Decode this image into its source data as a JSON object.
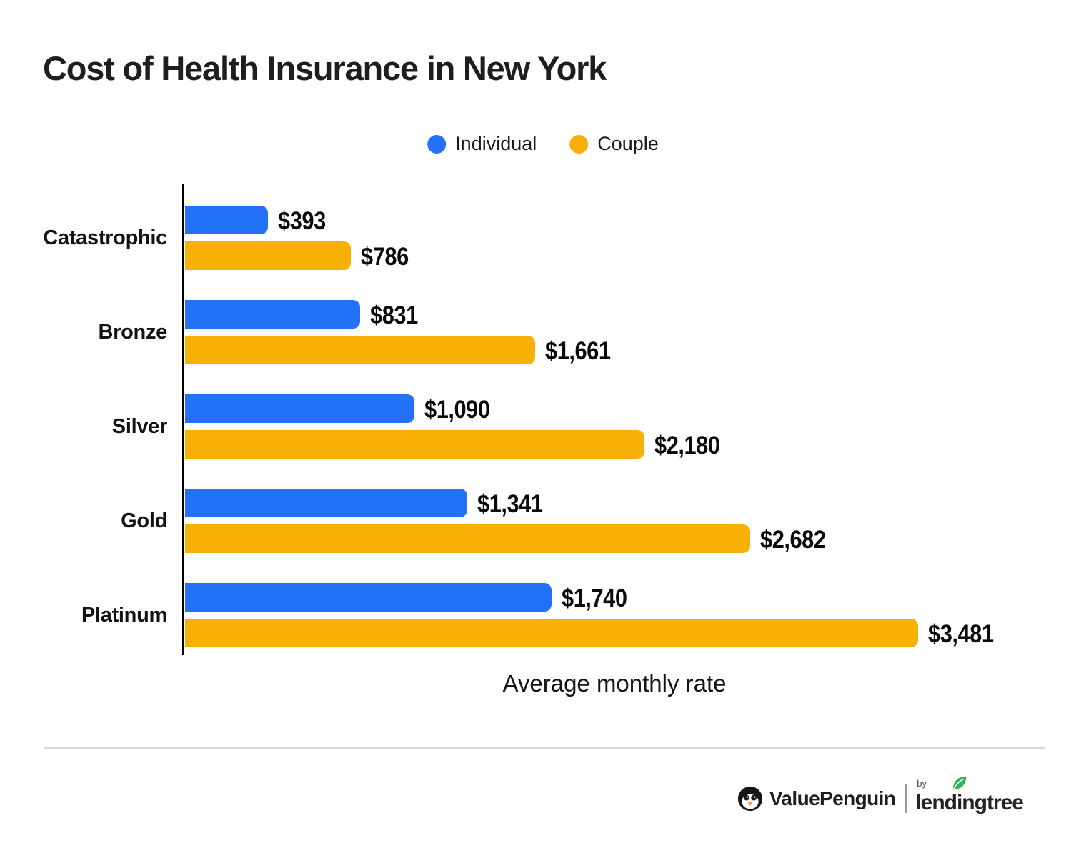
{
  "chart_data": {
    "type": "bar",
    "orientation": "horizontal",
    "title": "Cost of Health Insurance in New York",
    "xlabel": "Average monthly rate",
    "categories": [
      "Catastrophic",
      "Bronze",
      "Silver",
      "Gold",
      "Platinum"
    ],
    "series": [
      {
        "name": "Individual",
        "color": "#2271f7",
        "values": [
          393,
          831,
          1090,
          1341,
          1740
        ],
        "labels": [
          "$393",
          "$831",
          "$1,090",
          "$1,341",
          "$1,740"
        ]
      },
      {
        "name": "Couple",
        "color": "#f8b004",
        "values": [
          786,
          1661,
          2180,
          2682,
          3481
        ],
        "labels": [
          "$786",
          "$1,661",
          "$2,180",
          "$2,682",
          "$3,481"
        ]
      }
    ],
    "xmax": 3481,
    "grid": false,
    "legend_position": "top-center",
    "axis_color": "#000000"
  },
  "footer": {
    "brand": "ValuePenguin",
    "by_label": "by",
    "partner": "lendingtree",
    "leaf_color": "#2fb457"
  }
}
